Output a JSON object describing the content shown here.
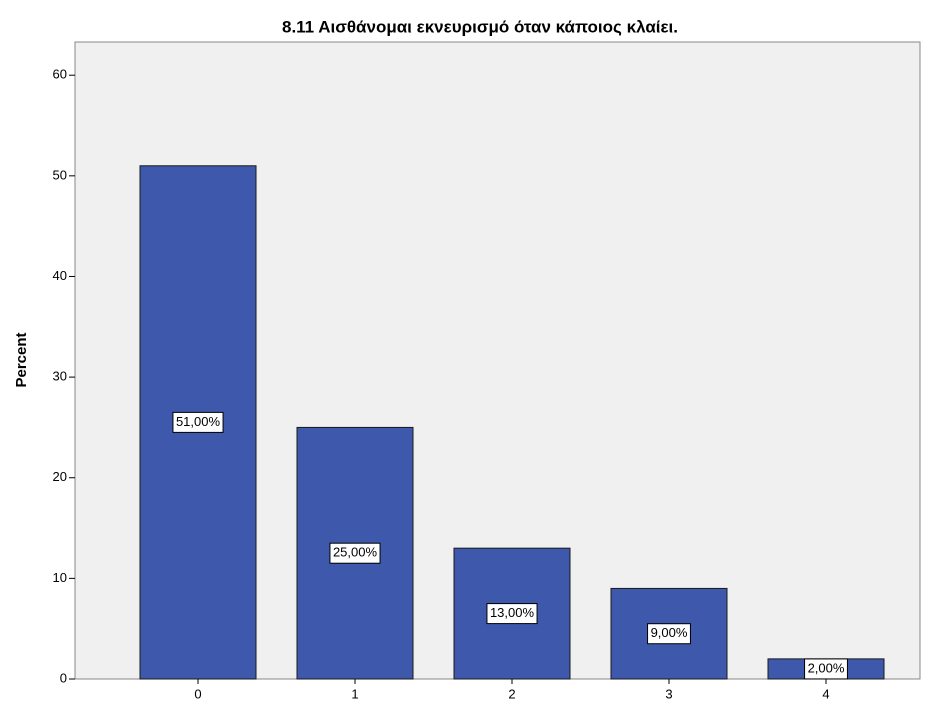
{
  "chart_data": {
    "type": "bar",
    "title": "8.11 Αισθάνομαι εκνευρισμό όταν κάποιος κλαίει.",
    "y_label": "Percent",
    "categories": [
      "0",
      "1",
      "2",
      "3",
      "4"
    ],
    "values": [
      51,
      25,
      13,
      9,
      2
    ],
    "value_labels": [
      "51,00%",
      "25,00%",
      "13,00%",
      "9,00%",
      "2,00%"
    ],
    "color": "#3e58ac",
    "ylim": [
      0,
      63.3
    ],
    "yticks": [
      0,
      10,
      20,
      30,
      40,
      50,
      60
    ],
    "grid": false
  }
}
